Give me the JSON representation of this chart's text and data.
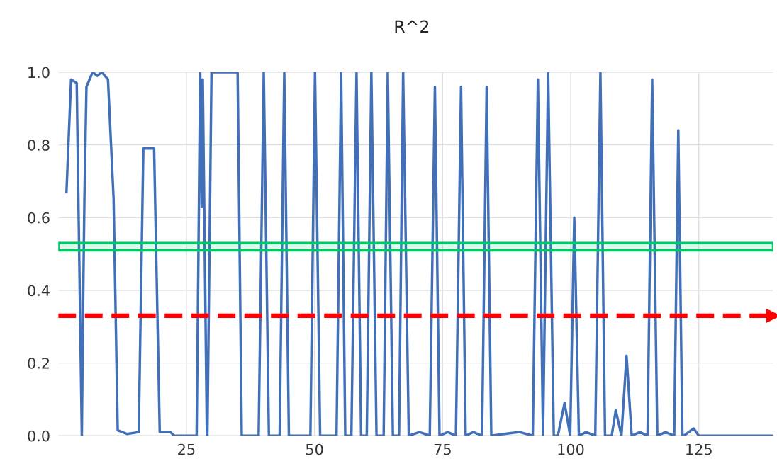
{
  "chart_data": {
    "type": "line",
    "title": "R^2",
    "x": [
      1.6,
      2.5,
      3.6,
      4.0,
      4.6,
      4.8,
      5.1,
      5.5,
      6.7,
      7.6,
      8.5,
      9.7,
      10.8,
      11.6,
      13.4,
      15.7,
      16.6,
      18.7,
      19.8,
      21.9,
      22.6,
      27.0,
      27.7,
      28.0,
      28.2,
      29.0,
      29.1,
      29.9,
      35.0,
      35.8,
      39.1,
      40.1,
      41.1,
      43.2,
      44.1,
      45.0,
      49.2,
      50.1,
      51.1,
      54.3,
      55.2,
      56.0,
      57.2,
      58.2,
      59.1,
      60.2,
      61.1,
      62.1,
      63.5,
      64.3,
      65.3,
      66.5,
      67.3,
      68.4,
      70.5,
      72.5,
      73.5,
      74.4,
      76.0,
      77.6,
      78.6,
      79.5,
      81.0,
      82.7,
      83.6,
      84.5,
      87.0,
      90.0,
      92.6,
      93.6,
      94.6,
      95.6,
      96.7,
      97.5,
      98.8,
      99.9,
      100.7,
      101.6,
      103.0,
      104.8,
      105.8,
      106.7,
      108.0,
      108.8,
      109.9,
      110.9,
      111.9,
      113.5,
      115.0,
      115.9,
      116.9,
      118.5,
      120.2,
      121.0,
      121.8,
      122.1,
      124.0,
      125.0,
      139.5
    ],
    "series": [
      {
        "color": "#4170b8",
        "values": [
          0.67,
          0.98,
          0.97,
          0.58,
          0.0,
          0.3,
          0.65,
          0.96,
          1.0,
          0.99,
          1.0,
          0.98,
          0.65,
          0.015,
          0.005,
          0.01,
          0.79,
          0.79,
          0.01,
          0.01,
          0.0,
          0.0,
          1.0,
          0.63,
          0.98,
          0.0,
          0.0,
          1.0,
          1.0,
          0.0,
          0.0,
          1.0,
          0.0,
          0.0,
          1.0,
          0.0,
          0.0,
          1.0,
          0.0,
          0.0,
          1.0,
          0.0,
          0.0,
          1.0,
          0.0,
          0.0,
          1.0,
          0.0,
          0.0,
          1.0,
          0.0,
          0.0,
          1.0,
          0.0,
          0.01,
          0.0,
          0.96,
          0.0,
          0.01,
          0.0,
          0.96,
          0.0,
          0.01,
          0.0,
          0.96,
          0.0,
          0.005,
          0.01,
          0.0,
          0.98,
          0.0,
          1.0,
          0.0,
          0.0,
          0.09,
          0.0,
          0.6,
          0.0,
          0.01,
          0.0,
          1.0,
          0.0,
          0.0,
          0.07,
          0.0,
          0.22,
          0.0,
          0.01,
          0.0,
          0.98,
          0.0,
          0.01,
          0.0,
          0.84,
          0.0,
          0.0,
          0.02,
          0.0,
          0.0
        ]
      }
    ],
    "xlim": [
      0,
      139.5
    ],
    "ylim": [
      0,
      1.0
    ],
    "xticks": [
      25,
      50,
      75,
      100,
      125
    ],
    "yticks": [
      {
        "value": 0,
        "label": "0.0"
      },
      {
        "value": 0.2,
        "label": "0.2"
      },
      {
        "value": 0.4,
        "label": "0.4"
      },
      {
        "value": 0.6,
        "label": "0.6"
      },
      {
        "value": 0.8,
        "label": "0.8"
      },
      {
        "value": 1.0,
        "label": "1.0"
      }
    ],
    "grid": true,
    "ref_lines": [
      {
        "axis": "y",
        "value": 0.33,
        "color": "#ff0000",
        "line_style": "dashed"
      }
    ],
    "bands": [
      {
        "axis": "y",
        "from": 0.51,
        "to": 0.53,
        "color": "#00c864"
      }
    ]
  }
}
